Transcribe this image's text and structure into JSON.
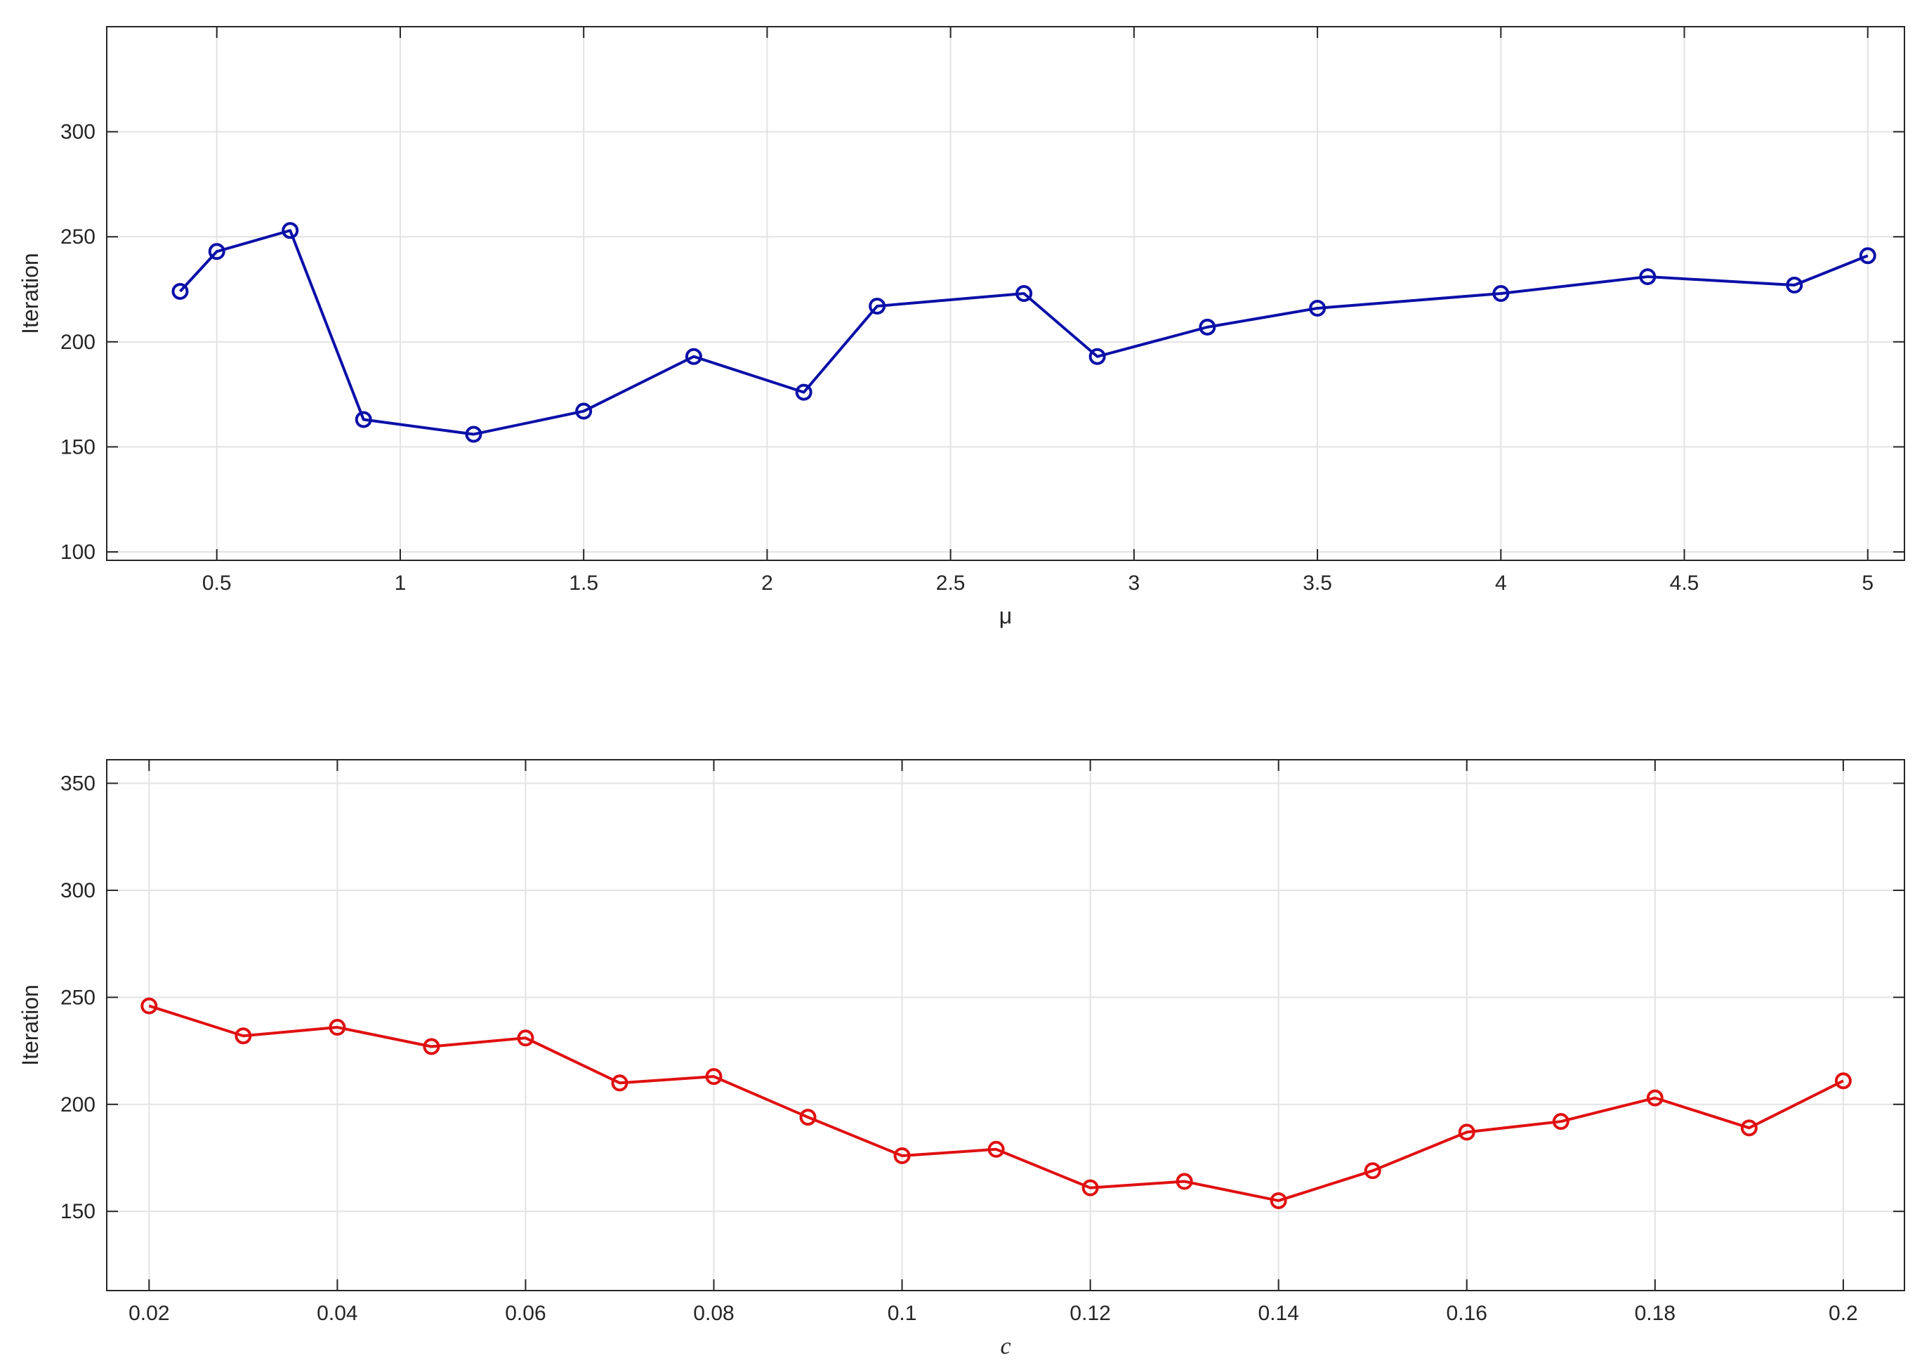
{
  "chart_data": [
    {
      "type": "line",
      "title": "",
      "xlabel": "μ",
      "ylabel": "Iteration",
      "xlim": [
        0.2,
        5.1
      ],
      "ylim": [
        96,
        350
      ],
      "xticks": [
        0.5,
        1,
        1.5,
        2,
        2.5,
        3,
        3.5,
        4,
        4.5,
        5
      ],
      "xtick_labels": [
        "0.5",
        "1",
        "1.5",
        "2",
        "2.5",
        "3",
        "3.5",
        "4",
        "4.5",
        "5"
      ],
      "yticks": [
        100,
        150,
        200,
        250,
        300
      ],
      "ytick_labels": [
        "100",
        "150",
        "200",
        "250",
        "300"
      ],
      "grid": true,
      "series": [
        {
          "color": "#0b10a8",
          "marker": "circle",
          "x": [
            0.4,
            0.5,
            0.7,
            0.9,
            1.2,
            1.5,
            1.8,
            2.1,
            2.3,
            2.7,
            2.9,
            3.2,
            3.5,
            4.0,
            4.4,
            4.8,
            5.0
          ],
          "y": [
            224,
            243,
            253,
            163,
            156,
            167,
            193,
            176,
            217,
            223,
            193,
            207,
            216,
            223,
            231,
            227,
            241
          ]
        }
      ]
    },
    {
      "type": "line",
      "title": "",
      "xlabel": "c",
      "ylabel": "Iteration",
      "xlim": [
        0.0155,
        0.2065
      ],
      "ylim": [
        113,
        361
      ],
      "xticks": [
        0.02,
        0.04,
        0.06,
        0.08,
        0.1,
        0.12,
        0.14,
        0.16,
        0.18,
        0.2
      ],
      "xtick_labels": [
        "0.02",
        "0.04",
        "0.06",
        "0.08",
        "0.1",
        "0.12",
        "0.14",
        "0.16",
        "0.18",
        "0.2"
      ],
      "yticks": [
        150,
        200,
        250,
        300,
        350
      ],
      "ytick_labels": [
        "150",
        "200",
        "250",
        "300",
        "350"
      ],
      "grid": true,
      "series": [
        {
          "color": "#e01010",
          "marker": "circle",
          "x": [
            0.02,
            0.03,
            0.04,
            0.05,
            0.06,
            0.07,
            0.08,
            0.09,
            0.1,
            0.11,
            0.12,
            0.13,
            0.14,
            0.15,
            0.16,
            0.17,
            0.18,
            0.19,
            0.2
          ],
          "y": [
            246,
            232,
            236,
            227,
            231,
            210,
            213,
            194,
            176,
            179,
            161,
            164,
            155,
            169,
            187,
            192,
            203,
            189,
            211
          ]
        }
      ]
    }
  ]
}
